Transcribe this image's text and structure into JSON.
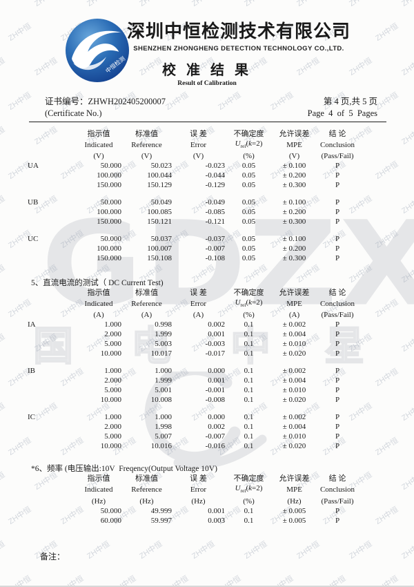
{
  "colors": {
    "logo_blue_light": "#4a90d0",
    "logo_blue_dark": "#123d8c",
    "watermark_gray": "#e5e6e8",
    "tile_watermark": "#99a3b3"
  },
  "watermark": {
    "tile_text": "ZH中恒",
    "big_text": "GDZX",
    "big_cn_chars": [
      "国",
      "电",
      "中",
      "星"
    ]
  },
  "header": {
    "company_cn": "深圳中恒检测技术有限公司",
    "company_en": "SHENZHEN ZHONGHENG DETECTION TECHNOLOGY CO.,LTD.",
    "title_cn": "校 准 结 果",
    "title_en": "Result of Calibration",
    "logo_text": "中恒检测"
  },
  "cert": {
    "label_cn": "证书编号：",
    "number": "ZHWH202405200007",
    "label_en": "(Certificate No.)",
    "page_cn": "第 4 页,共 5 页",
    "page_en": "Page  4  of  5  Pages"
  },
  "table_header": {
    "cn": [
      "指示值",
      "标准值",
      "误 差",
      "不确定度",
      "允许误差",
      "结  论"
    ],
    "en": [
      "Indicated",
      "Reference",
      "Error",
      "",
      "MPE",
      "Conclusion"
    ],
    "urel": {
      "sym": "U",
      "sub": "rel",
      "pre": "(",
      "kvar": "k",
      "post": "=2)"
    },
    "pass_fail": "(Pass/Fail)"
  },
  "sections": [
    {
      "title": "",
      "unit": "(V)",
      "uncert_unit": "(%)",
      "groups": [
        {
          "label": "UA",
          "rows": [
            [
              "50.000",
              "50.023",
              "-0.023",
              "0.05",
              "± 0.100",
              "P"
            ],
            [
              "100.000",
              "100.044",
              "-0.044",
              "0.05",
              "± 0.200",
              "P"
            ],
            [
              "150.000",
              "150.129",
              "-0.129",
              "0.05",
              "± 0.300",
              "P"
            ]
          ]
        },
        {
          "label": "UB",
          "rows": [
            [
              "50.000",
              "50.049",
              "-0.049",
              "0.05",
              "± 0.100",
              "P"
            ],
            [
              "100.000",
              "100.085",
              "-0.085",
              "0.05",
              "± 0.200",
              "P"
            ],
            [
              "150.000",
              "150.121",
              "-0.121",
              "0.05",
              "± 0.300",
              "P"
            ]
          ]
        },
        {
          "label": "UC",
          "rows": [
            [
              "50.000",
              "50.037",
              "-0.037",
              "0.05",
              "± 0.100",
              "P"
            ],
            [
              "100.000",
              "100.007",
              "-0.007",
              "0.05",
              "± 0.200",
              "P"
            ],
            [
              "150.000",
              "150.108",
              "-0.108",
              "0.05",
              "± 0.300",
              "P"
            ]
          ]
        }
      ]
    },
    {
      "title": "5、直流电流的测试（ DC Current Test)",
      "unit": "(A)",
      "uncert_unit": "(%)",
      "groups": [
        {
          "label": "IA",
          "rows": [
            [
              "1.000",
              "0.998",
              "0.002",
              "0.1",
              "± 0.002",
              "P"
            ],
            [
              "2.000",
              "1.999",
              "0.001",
              "0.1",
              "± 0.004",
              "P"
            ],
            [
              "5.000",
              "5.003",
              "-0.003",
              "0.1",
              "± 0.010",
              "P"
            ],
            [
              "10.000",
              "10.017",
              "-0.017",
              "0.1",
              "± 0.020",
              "P"
            ]
          ]
        },
        {
          "label": "IB",
          "rows": [
            [
              "1.000",
              "1.000",
              "0.000",
              "0.1",
              "± 0.002",
              "P"
            ],
            [
              "2.000",
              "1.999",
              "0.001",
              "0.1",
              "± 0.004",
              "P"
            ],
            [
              "5.000",
              "5.001",
              "-0.001",
              "0.1",
              "± 0.010",
              "P"
            ],
            [
              "10.000",
              "10.008",
              "-0.008",
              "0.1",
              "± 0.020",
              "P"
            ]
          ]
        },
        {
          "label": "IC",
          "rows": [
            [
              "1.000",
              "1.000",
              "0.000",
              "0.1",
              "± 0.002",
              "P"
            ],
            [
              "2.000",
              "1.998",
              "0.002",
              "0.1",
              "± 0.004",
              "P"
            ],
            [
              "5.000",
              "5.007",
              "-0.007",
              "0.1",
              "± 0.010",
              "P"
            ],
            [
              "10.000",
              "10.016",
              "-0.016",
              "0.1",
              "± 0.020",
              "P"
            ]
          ]
        }
      ]
    },
    {
      "title": "*6、频率 (电压输出:10V  Freqency(Output Voltage 10V)",
      "unit": "(Hz)",
      "uncert_unit": "(%)",
      "groups": [
        {
          "label": "",
          "rows": [
            [
              "50.000",
              "49.999",
              "0.001",
              "0.1",
              "±   0.005",
              "P"
            ],
            [
              "60.000",
              "59.997",
              "0.003",
              "0.1",
              "±   0.005",
              "P"
            ]
          ]
        }
      ]
    }
  ],
  "footer": {
    "remarks_label": "备注："
  }
}
